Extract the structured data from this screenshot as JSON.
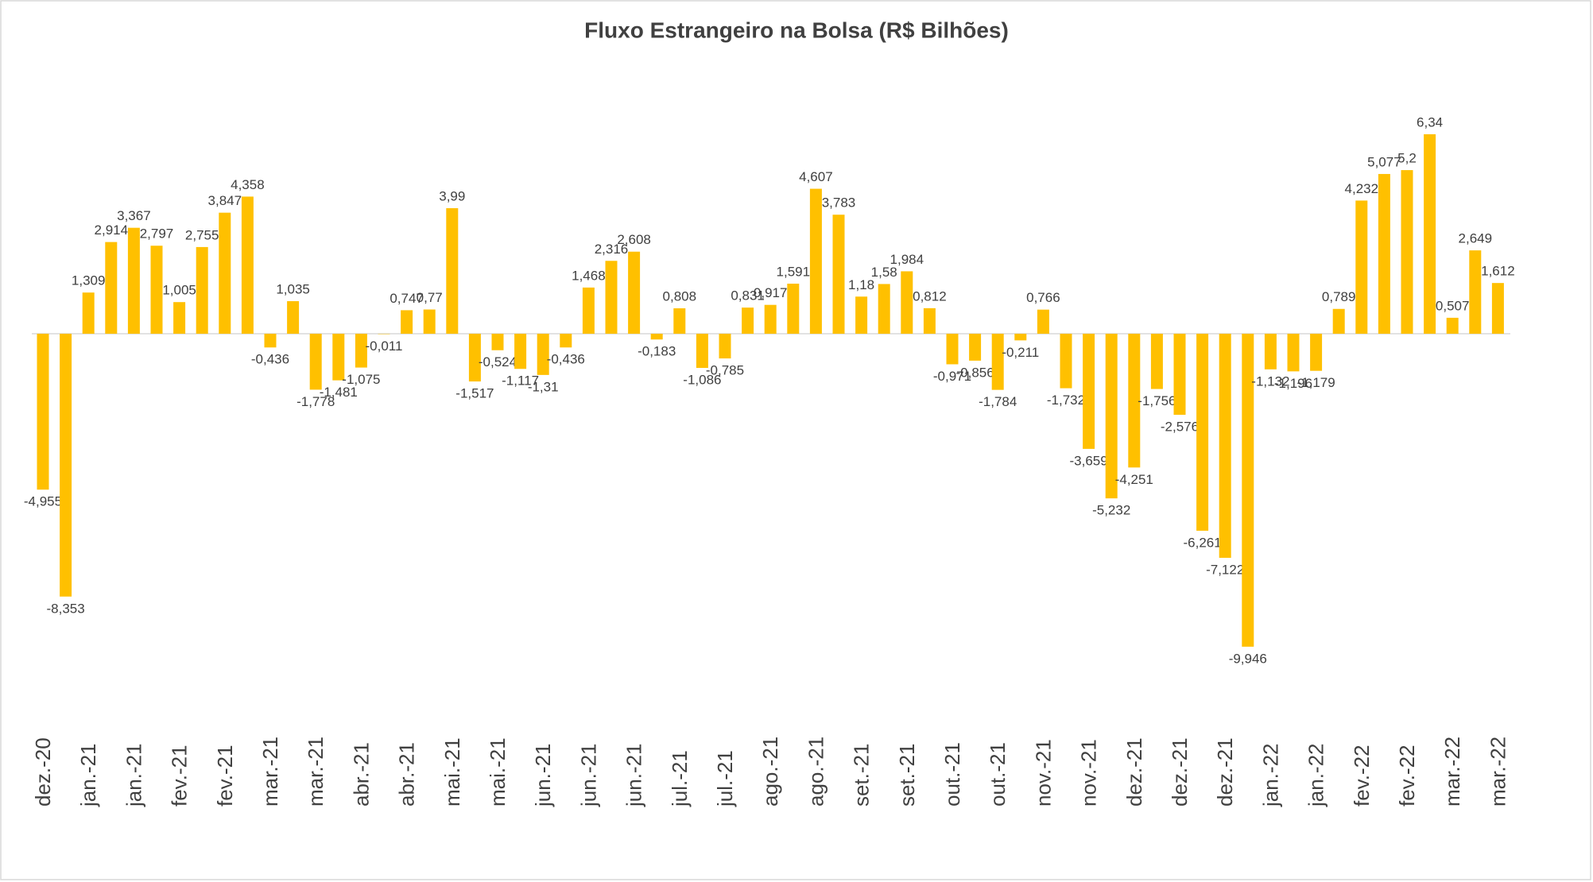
{
  "chart_data": {
    "type": "bar",
    "title": "Fluxo Estrangeiro na Bolsa (R$ Bilhões)",
    "color": "#ffc000",
    "categories": [
      "dez.-20",
      null,
      "jan.-21",
      null,
      "jan.-21",
      null,
      "fev.-21",
      null,
      "fev.-21",
      null,
      "mar.-21",
      null,
      "mar.-21",
      null,
      "abr.-21",
      null,
      "abr.-21",
      null,
      "mai.-21",
      null,
      "mai.-21",
      null,
      "jun.-21",
      null,
      "jun.-21",
      null,
      "jun.-21",
      null,
      "jul.-21",
      null,
      "jul.-21",
      null,
      "ago.-21",
      null,
      "ago.-21",
      null,
      "set.-21",
      null,
      "set.-21",
      null,
      "out.-21",
      null,
      "out.-21",
      null,
      "nov.-21",
      null,
      "nov.-21",
      null,
      "dez.-21",
      null,
      "dez.-21",
      null,
      "dez.-21",
      null,
      "jan.-22",
      null,
      "jan.-22",
      null,
      "fev.-22",
      null,
      "fev.-22",
      null,
      "mar.-22",
      null,
      "mar.-22"
    ],
    "values": [
      -4.955,
      -8.353,
      1.309,
      2.914,
      3.367,
      2.797,
      1.005,
      2.755,
      3.847,
      4.358,
      -0.436,
      1.035,
      -1.778,
      -1.481,
      -1.075,
      -0.011,
      0.747,
      0.77,
      3.99,
      -1.517,
      -0.524,
      -1.117,
      -1.31,
      -0.436,
      1.468,
      2.316,
      2.608,
      -0.183,
      0.808,
      -1.086,
      -0.785,
      0.831,
      0.917,
      1.591,
      4.607,
      3.783,
      1.18,
      1.58,
      1.984,
      0.812,
      -0.971,
      -0.856,
      -1.784,
      -0.211,
      0.766,
      -1.732,
      -3.659,
      -5.232,
      -4.251,
      -1.756,
      -2.576,
      -6.261,
      -7.122,
      -9.946,
      -1.132,
      -1.196,
      -1.179,
      0.789,
      4.232,
      5.077,
      5.2,
      6.34,
      0.507,
      2.649,
      1.612
    ],
    "value_labels": [
      "-4,955",
      "-8,353",
      "1,309",
      "2,914",
      "3,367",
      "2,797",
      "1,005",
      "2,755",
      "3,847",
      "4,358",
      "-0,436",
      "1,035",
      "-1,778",
      "-1,481",
      "-1,075",
      "-0,011",
      "0,747",
      "0,77",
      "3,99",
      "-1,517",
      "-0,524",
      "-1,117",
      "-1,31",
      "-0,436",
      "1,468",
      "2,316",
      "2,608",
      "-0,183",
      "0,808",
      "-1,086",
      "-0,785",
      "0,831",
      "0,917",
      "1,591",
      "4,607",
      "3,783",
      "1,18",
      "1,58",
      "1,984",
      "0,812",
      "-0,971",
      "-0,856",
      "-1,784",
      "-0,211",
      "0,766",
      "-1,732",
      "-3,659",
      "-5,232",
      "-4,251",
      "-1,756",
      "-2,576",
      "-6,261",
      "-7,122",
      "-9,946",
      "-1,132",
      "-1,196",
      "-1,179",
      "0,789",
      "4,232",
      "5,077",
      "5,2",
      "6,34",
      "0,507",
      "2,649",
      "1,612"
    ]
  }
}
